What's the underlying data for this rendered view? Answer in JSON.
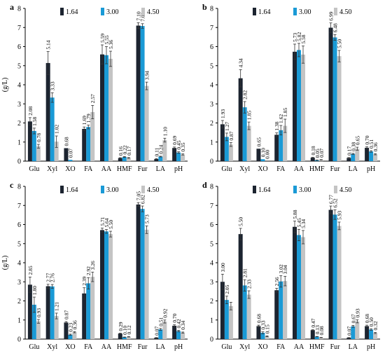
{
  "chart_data": [
    {
      "type": "bar",
      "panel_label": "a",
      "ylabel": "(g/L)",
      "categories": [
        "Glu",
        "Xyl",
        "XO",
        "FA",
        "AA",
        "HMF",
        "Fur",
        "LA",
        "pH"
      ],
      "ylim": [
        0,
        8
      ],
      "yticks": [
        "0",
        "1",
        "2",
        "3",
        "4",
        "5",
        "6",
        "7",
        "8"
      ],
      "series": [
        {
          "name": "1.64",
          "values": [
            2.08,
            5.14,
            0.68,
            1.69,
            5.59,
            0.16,
            7.1,
            0.11,
            0.69
          ],
          "errors": [
            0.2,
            0.6,
            0.0,
            0.1,
            0.5,
            0.02,
            0.15,
            0.02,
            0.05
          ]
        },
        {
          "name": "3.00",
          "values": [
            1.58,
            3.33,
            0.07,
            1.79,
            5.55,
            0.22,
            7.08,
            0.24,
            0.45
          ],
          "errors": [
            0.15,
            0.25,
            0.0,
            0.1,
            0.45,
            0.02,
            0.12,
            0.02,
            0.04
          ]
        },
        {
          "name": "4.50",
          "values": [
            0.78,
            1.02,
            0.0,
            2.57,
            5.36,
            0.17,
            3.94,
            1.1,
            0.35
          ],
          "errors": [
            0.1,
            0.3,
            0.0,
            0.35,
            0.4,
            0.02,
            0.2,
            0.1,
            0.03
          ]
        }
      ],
      "data_labels": [
        [
          "2.08",
          "5.14",
          "0.68",
          "1.69",
          "5.59",
          "0.16",
          "7.10",
          "0.11",
          "0.69"
        ],
        [
          "1.58",
          "3.33",
          "0.07",
          "1.79",
          "5.55",
          "0.22",
          "7.08",
          "0.24",
          "0.45"
        ],
        [
          "0.78",
          "1.02",
          "",
          "2.57",
          "5.36",
          "0.17",
          "3.94",
          "1.10",
          "0.35"
        ]
      ],
      "grid": false,
      "legend_position": "top"
    },
    {
      "type": "bar",
      "panel_label": "b",
      "ylabel": "",
      "categories": [
        "Glu",
        "Xyl",
        "XO",
        "FA",
        "AA",
        "HMF",
        "Fur",
        "LA",
        "pH"
      ],
      "ylim": [
        0,
        8
      ],
      "yticks": [
        "0",
        "1",
        "2",
        "3",
        "4",
        "5",
        "6",
        "7",
        "8"
      ],
      "series": [
        {
          "name": "1.64",
          "values": [
            1.93,
            4.34,
            0.65,
            1.38,
            5.73,
            0.18,
            6.99,
            0.17,
            0.7
          ],
          "errors": [
            0.2,
            0.45,
            0.0,
            0.1,
            0.4,
            0.02,
            0.25,
            0.02,
            0.05
          ]
        },
        {
          "name": "3.00",
          "values": [
            1.27,
            2.82,
            0.1,
            1.62,
            5.82,
            0.05,
            6.48,
            0.38,
            0.51
          ],
          "errors": [
            0.2,
            0.3,
            0.0,
            0.25,
            0.35,
            0.01,
            0.15,
            0.03,
            0.04
          ]
        },
        {
          "name": "4.50",
          "values": [
            0.87,
            1.85,
            0.0,
            1.85,
            5.58,
            0.07,
            5.5,
            0.65,
            0.36
          ],
          "errors": [
            0.1,
            0.2,
            0.0,
            0.35,
            0.45,
            0.01,
            0.3,
            0.08,
            0.03
          ]
        }
      ],
      "data_labels": [
        [
          "1.93",
          "4.34",
          "0.65",
          "1.38",
          "5.73",
          "0.18",
          "6.99",
          "0.17",
          "0.70"
        ],
        [
          "1.27",
          "2.82",
          "0.10",
          "1.62",
          "5.82",
          "0.05",
          "6.48",
          "0.38",
          "0.51"
        ],
        [
          "0.87",
          "1.85",
          "0.00",
          "1.85",
          "5.58",
          "0.07",
          "5.50",
          "0.65",
          "0.36"
        ]
      ],
      "grid": false,
      "legend_position": "top"
    },
    {
      "type": "bar",
      "panel_label": "c",
      "ylabel": "(g/L)",
      "categories": [
        "Glu",
        "Xyl",
        "XO",
        "FA",
        "AA",
        "HMF",
        "Fur",
        "LA",
        "pH"
      ],
      "ylim": [
        0,
        8
      ],
      "yticks": [
        "0",
        "1",
        "2",
        "3",
        "4",
        "5",
        "6",
        "7",
        "8"
      ],
      "series": [
        {
          "name": "1.64",
          "values": [
            2.85,
            2.77,
            0.87,
            2.39,
            5.71,
            0.29,
            7.05,
            0.07,
            0.7
          ],
          "errors": [
            0.4,
            0.1,
            0.05,
            0.3,
            0.1,
            0.02,
            0.1,
            0.01,
            0.05
          ]
        },
        {
          "name": "3.00",
          "values": [
            1.8,
            2.76,
            0.23,
            2.92,
            5.64,
            0.1,
            6.82,
            0.51,
            0.42
          ],
          "errors": [
            0.4,
            0.1,
            0.03,
            0.3,
            0.1,
            0.01,
            0.15,
            0.05,
            0.04
          ]
        },
        {
          "name": "4.50",
          "values": [
            0.93,
            1.21,
            0.36,
            3.26,
            5.5,
            0.12,
            5.73,
            0.92,
            0.34
          ],
          "errors": [
            0.1,
            0.15,
            0.03,
            0.25,
            0.15,
            0.01,
            0.2,
            0.08,
            0.03
          ]
        }
      ],
      "data_labels": [
        [
          "2.85",
          "2.77",
          "0.87",
          "2.39",
          "5.71",
          "0.29",
          "7.05",
          "0.07",
          "0.70"
        ],
        [
          "1.80",
          "2.76",
          "0.23",
          "2.92",
          "5.64",
          "0.10",
          "6.82",
          "0.51",
          "0.42"
        ],
        [
          "0.93",
          "1.21",
          "0.36",
          "3.26",
          "5.50",
          "0.12",
          "5.73",
          "0.92",
          "0.34"
        ]
      ],
      "grid": false,
      "legend_position": "top"
    },
    {
      "type": "bar",
      "panel_label": "d",
      "ylabel": "",
      "categories": [
        "Glu",
        "Xyl",
        "XO",
        "FA",
        "AA",
        "HMF",
        "Fur",
        "LA",
        "pH"
      ],
      "ylim": [
        0,
        8
      ],
      "yticks": [
        "0",
        "1",
        "2",
        "3",
        "4",
        "5",
        "6",
        "7",
        "8"
      ],
      "series": [
        {
          "name": "1.64",
          "values": [
            3.0,
            5.5,
            0.68,
            2.56,
            5.88,
            0.47,
            6.77,
            0.07,
            0.68
          ],
          "errors": [
            0.4,
            0.3,
            0.05,
            0.1,
            0.3,
            0.02,
            0.2,
            0.01,
            0.05
          ]
        },
        {
          "name": "3.00",
          "values": [
            2.05,
            2.81,
            0.33,
            3.02,
            5.45,
            0.13,
            6.52,
            0.67,
            0.5
          ],
          "errors": [
            0.2,
            0.3,
            0.05,
            0.3,
            0.3,
            0.01,
            0.25,
            0.05,
            0.04
          ]
        },
        {
          "name": "4.50",
          "values": [
            1.73,
            2.33,
            0.15,
            3.04,
            5.34,
            0.08,
            5.93,
            0.93,
            0.32
          ],
          "errors": [
            0.2,
            0.2,
            0.02,
            0.25,
            0.35,
            0.01,
            0.2,
            0.08,
            0.03
          ]
        }
      ],
      "data_labels": [
        [
          "3.00",
          "5.50",
          "0.68",
          "2.56",
          "5.88",
          "0.47",
          "6.77",
          "0.07",
          "0.68"
        ],
        [
          "2.05",
          "2.81",
          "0.33",
          "3.02",
          "5.45",
          "0.13",
          "6.52",
          "0.67",
          "0.50"
        ],
        [
          "",
          "2.33",
          "0.15",
          "3.04",
          "5.34",
          "0.08",
          "5.93",
          "0.93",
          "0.32"
        ]
      ],
      "grid": false,
      "legend_position": "top"
    }
  ],
  "colors": {
    "series_1": "#1c2430",
    "series_2": "#1a9ad6",
    "series_3": "#c4c4c4",
    "axis": "#000000"
  }
}
